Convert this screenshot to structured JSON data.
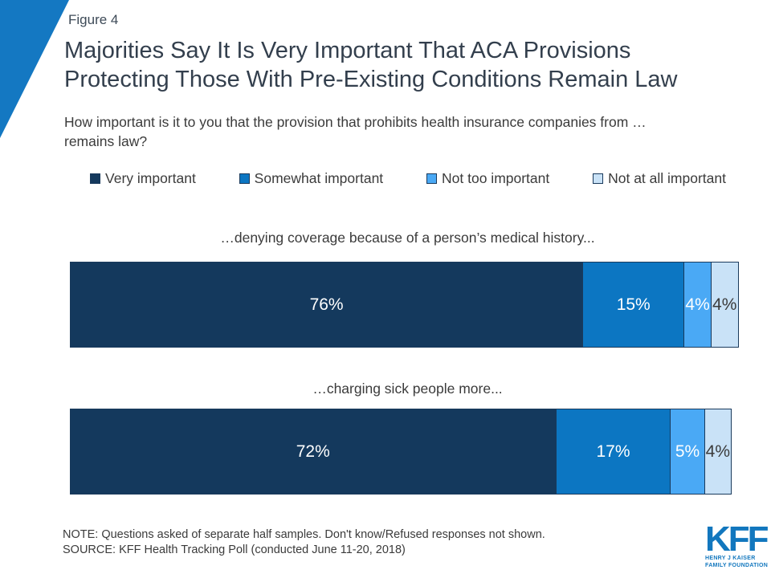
{
  "figure_label": "Figure 4",
  "header": {
    "title_lines": [
      "Majorities Say It Is Very Important That ACA Provisions",
      "Protecting Those With Pre-Existing Conditions Remain Law"
    ],
    "question_lines": [
      "How important is it to you that the provision that prohibits health insurance companies from …",
      "remains law?"
    ]
  },
  "chart_data": {
    "type": "bar",
    "orientation": "horizontal-stacked",
    "xlim": [
      0,
      100
    ],
    "value_suffix": "%",
    "grid": false,
    "legend_position": "top",
    "categories": [
      "…denying coverage because of a person’s medical history...",
      "…charging sick people more..."
    ],
    "series": [
      {
        "name": "Very important",
        "color": "#14395d",
        "label_color": "#ffffff",
        "values": [
          76,
          72
        ]
      },
      {
        "name": "Somewhat important",
        "color": "#0c76c2",
        "label_color": "#ffffff",
        "values": [
          15,
          17
        ]
      },
      {
        "name": "Not too important",
        "color": "#4aa9f5",
        "label_color": "#ffffff",
        "values": [
          4,
          5
        ]
      },
      {
        "name": "Not at all important",
        "color": "#c9e2f7",
        "label_color": "#3b3b3b",
        "values": [
          4,
          4
        ]
      }
    ]
  },
  "footnotes": {
    "note": "NOTE: Questions asked of separate half samples. Don't know/Refused responses not shown.",
    "source": "SOURCE: KFF Health Tracking Poll (conducted June 11-20, 2018)"
  },
  "logo": {
    "wordmark": "KFF",
    "tagline_lines": [
      "HENRY J KAISER",
      "FAMILY FOUNDATION"
    ]
  },
  "colors": {
    "accent_triangle": "#1478c2",
    "logo_blue": "#1277be",
    "segment_border": "#1a3a5c",
    "title_text": "#333f4d",
    "body_text": "#3b3b3b"
  }
}
